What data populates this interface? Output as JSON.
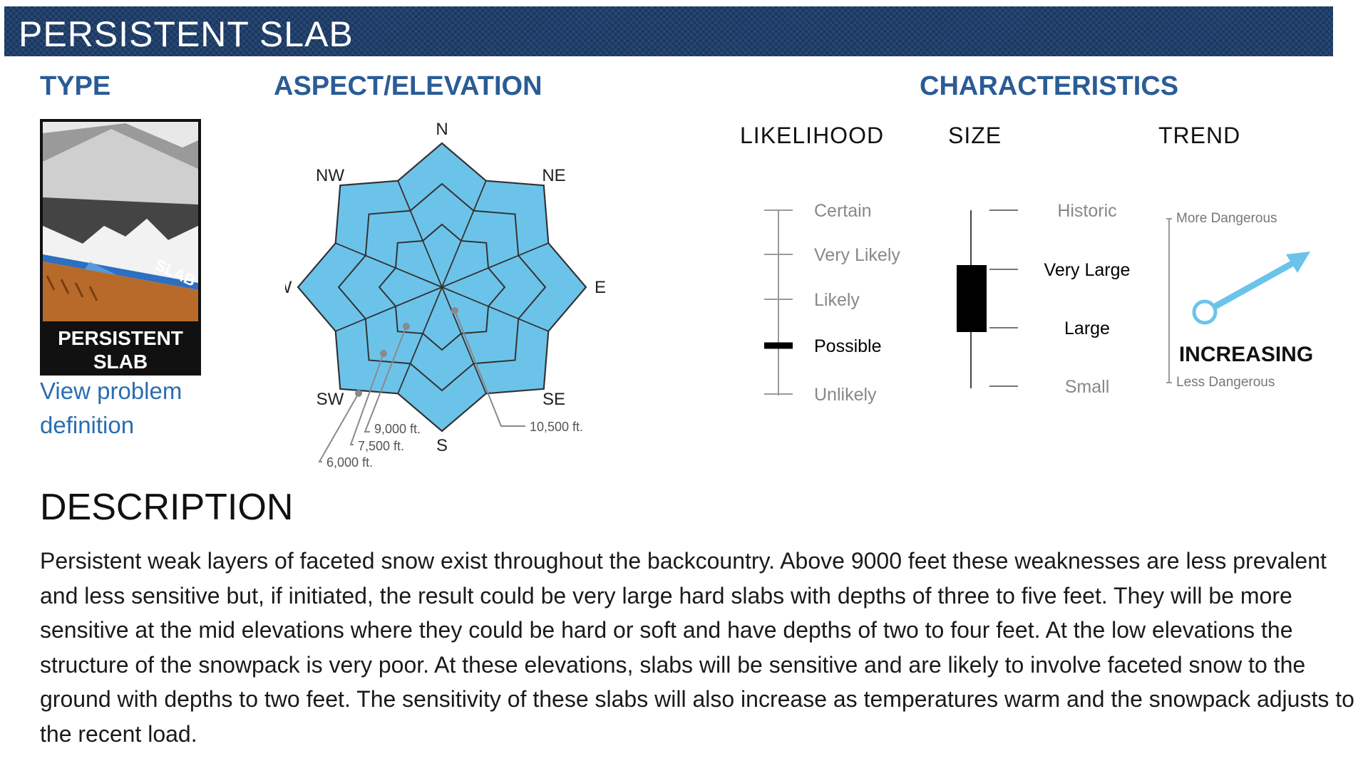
{
  "banner": {
    "title": "PERSISTENT SLAB"
  },
  "headings": {
    "type": "TYPE",
    "aspect": "ASPECT/ELEVATION",
    "characteristics": "CHARACTERISTICS"
  },
  "type_panel": {
    "icon_name": "persistent-slab-icon",
    "icon_caption": "PERSISTENT SLAB",
    "icon_tag": "SLAB",
    "link_label": "View problem definition"
  },
  "rose": {
    "directions": [
      "N",
      "NE",
      "E",
      "SE",
      "S",
      "SW",
      "W",
      "NW"
    ],
    "elevations": [
      "10,500 ft.",
      "9,000 ft.",
      "7,500 ft.",
      "6,000 ft."
    ],
    "fill_color": "#6cc3ea",
    "all_sectors_shaded": true
  },
  "characteristics": {
    "likelihood": {
      "label": "LIKELIHOOD",
      "levels": [
        "Certain",
        "Very Likely",
        "Likely",
        "Possible",
        "Unlikely"
      ],
      "selected": "Possible"
    },
    "size": {
      "label": "SIZE",
      "levels": [
        "Historic",
        "Very Large",
        "Large",
        "Small"
      ],
      "selected_range": [
        "Large",
        "Very Large"
      ]
    },
    "trend": {
      "label": "TREND",
      "top_label": "More Dangerous",
      "bottom_label": "Less Dangerous",
      "value_label": "INCREASING",
      "arrow_color": "#6cc3ea"
    }
  },
  "description": {
    "heading": "DESCRIPTION",
    "text": "Persistent weak layers of faceted snow exist throughout the backcountry. Above 9000 feet these weaknesses are less prevalent and less sensitive but, if initiated, the result could be very large hard slabs with depths of three to five feet. They will be more sensitive at the mid elevations where they could be hard or soft and have depths of two to four feet. At the low elevations the structure of the snowpack is very poor. At these elevations, slabs will be sensitive and are likely to involve faceted snow to the ground with depths to two feet. The sensitivity of these slabs will also increase as temperatures warm and the snowpack adjusts to the recent load."
  }
}
